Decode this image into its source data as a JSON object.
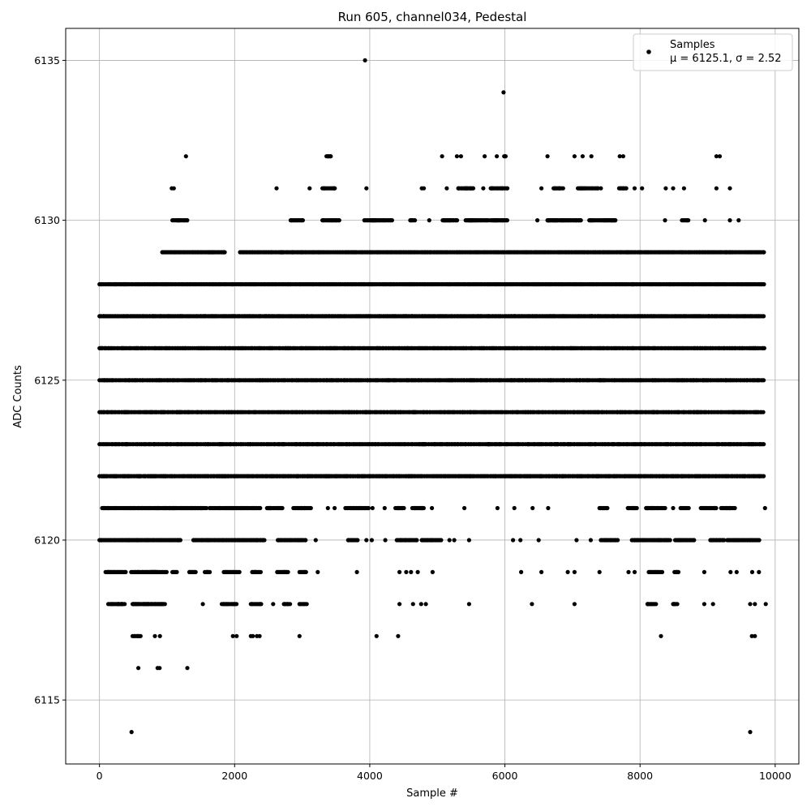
{
  "chart_data": {
    "type": "scatter",
    "title": "Run 605, channel034, Pedestal",
    "xlabel": "Sample #",
    "ylabel": "ADC Counts",
    "xlim": [
      -500,
      10350
    ],
    "ylim": [
      6113,
      6136
    ],
    "x_ticks": [
      0,
      2000,
      4000,
      6000,
      8000,
      10000
    ],
    "y_ticks": [
      6115,
      6120,
      6125,
      6130,
      6135
    ],
    "grid": true,
    "legend": {
      "placement": "top-right",
      "entries": [
        {
          "label": "Samples",
          "stats": "μ = 6125.1, σ = 2.52"
        }
      ]
    },
    "marker_color": "#000000",
    "level_coverage": [
      {
        "y": 6114,
        "ranges": [],
        "points": [
          475,
          9630
        ]
      },
      {
        "y": 6116,
        "ranges": [],
        "points": [
          575,
          860,
          890,
          1300
        ]
      },
      {
        "y": 6117,
        "ranges": [
          [
            490,
            620
          ]
        ],
        "points": [
          820,
          895,
          1975,
          2030,
          2240,
          2270,
          2330,
          2370,
          2960,
          4100,
          4420,
          8310,
          9655,
          9700
        ]
      },
      {
        "y": 6118,
        "ranges": [
          [
            130,
            380
          ],
          [
            490,
            980
          ],
          [
            1810,
            2030
          ],
          [
            2240,
            2410
          ],
          [
            2730,
            2830
          ],
          [
            2960,
            3070
          ],
          [
            8110,
            8240
          ],
          [
            8490,
            8560
          ]
        ],
        "points": [
          1530,
          2570,
          4440,
          4640,
          4760,
          4830,
          5470,
          6400,
          7030,
          8950,
          9080,
          9630,
          9700,
          9860
        ]
      },
      {
        "y": 6119,
        "ranges": [
          [
            90,
            400
          ],
          [
            470,
            1000
          ],
          [
            1080,
            1160
          ],
          [
            1330,
            1430
          ],
          [
            1560,
            1640
          ],
          [
            1840,
            2080
          ],
          [
            2260,
            2400
          ],
          [
            2630,
            2790
          ],
          [
            2960,
            3060
          ],
          [
            8130,
            8330
          ],
          [
            8510,
            8580
          ]
        ],
        "points": [
          3230,
          3810,
          4440,
          4540,
          4610,
          4710,
          4930,
          6240,
          6540,
          6930,
          7030,
          7400,
          7830,
          7920,
          8950,
          9340,
          9430,
          9660,
          9760
        ]
      },
      {
        "y": 6120,
        "ranges": [
          [
            0,
            1200
          ],
          [
            1390,
            2280
          ],
          [
            2280,
            2450
          ],
          [
            2640,
            3060
          ],
          [
            3680,
            3830
          ],
          [
            4400,
            4700
          ],
          [
            4770,
            5060
          ],
          [
            7420,
            7670
          ],
          [
            7880,
            8450
          ],
          [
            8520,
            8800
          ],
          [
            9040,
            9260
          ],
          [
            9290,
            9780
          ]
        ],
        "points": [
          3200,
          3950,
          4030,
          4230,
          5180,
          5250,
          5470,
          6120,
          6230,
          6500,
          7060,
          7270,
          8610
        ]
      },
      {
        "y": 6121,
        "ranges": [
          [
            40,
            1420
          ],
          [
            1440,
            1600
          ],
          [
            1630,
            2400
          ],
          [
            2480,
            2710
          ],
          [
            2870,
            3130
          ],
          [
            3640,
            3990
          ],
          [
            4380,
            4510
          ],
          [
            4630,
            4810
          ],
          [
            7400,
            7520
          ],
          [
            7820,
            7960
          ],
          [
            8090,
            8380
          ],
          [
            8600,
            8730
          ],
          [
            8900,
            9130
          ],
          [
            9200,
            9410
          ]
        ],
        "points": [
          3380,
          3480,
          4040,
          4220,
          4920,
          5400,
          5890,
          6140,
          6410,
          6640,
          8490,
          9850
        ]
      },
      {
        "y": 6122,
        "ranges": [
          [
            0,
            9840
          ]
        ],
        "points": []
      },
      {
        "y": 6123,
        "ranges": [
          [
            0,
            9840
          ]
        ],
        "points": []
      },
      {
        "y": 6124,
        "ranges": [
          [
            0,
            9840
          ]
        ],
        "points": []
      },
      {
        "y": 6125,
        "ranges": [
          [
            0,
            9840
          ]
        ],
        "points": []
      },
      {
        "y": 6126,
        "ranges": [
          [
            0,
            9840
          ]
        ],
        "points": []
      },
      {
        "y": 6127,
        "ranges": [
          [
            0,
            9840
          ]
        ],
        "points": []
      },
      {
        "y": 6128,
        "ranges": [
          [
            0,
            9840
          ]
        ],
        "points": []
      },
      {
        "y": 6129,
        "ranges": [
          [
            930,
            1870
          ],
          [
            2080,
            9840
          ]
        ],
        "points": []
      },
      {
        "y": 6130,
        "ranges": [
          [
            1080,
            1300
          ],
          [
            2830,
            3010
          ],
          [
            3300,
            3570
          ],
          [
            3920,
            4330
          ],
          [
            4600,
            4670
          ],
          [
            5080,
            5300
          ],
          [
            5420,
            5760
          ],
          [
            5790,
            6040
          ],
          [
            6630,
            7130
          ],
          [
            7250,
            7640
          ],
          [
            8620,
            8720
          ]
        ],
        "points": [
          4880,
          5170,
          6480,
          8370,
          8960,
          9330,
          9460
        ]
      },
      {
        "y": 6131,
        "ranges": [
          [
            3300,
            3490
          ],
          [
            5310,
            5550
          ],
          [
            5790,
            6040
          ],
          [
            6720,
            6870
          ],
          [
            7080,
            7380
          ],
          [
            7690,
            7810
          ]
        ],
        "points": [
          1070,
          1100,
          2620,
          3110,
          3950,
          4770,
          4800,
          5140,
          5680,
          6540,
          7420,
          7920,
          8030,
          8380,
          8490,
          8650,
          9130,
          9330
        ]
      },
      {
        "y": 6132,
        "ranges": [
          [
            3360,
            3440
          ],
          [
            5990,
            6020
          ]
        ],
        "points": [
          1280,
          5070,
          5290,
          5350,
          5700,
          5880,
          6630,
          7030,
          7150,
          7280,
          7700,
          7750,
          9130,
          9180
        ]
      },
      {
        "y": 6134,
        "ranges": [],
        "points": [
          5980
        ]
      },
      {
        "y": 6135,
        "ranges": [],
        "points": [
          3930
        ]
      }
    ]
  }
}
